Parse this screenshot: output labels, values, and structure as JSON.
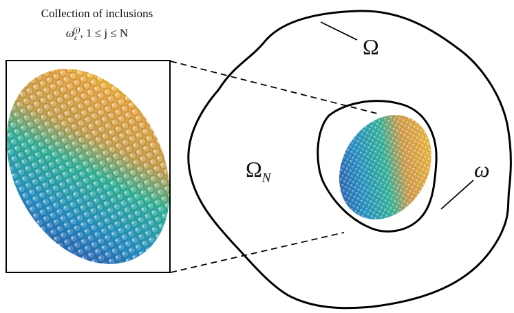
{
  "caption": {
    "line1": "Collection of inclusions",
    "line2_symbol": "ω",
    "line2_sub": "ε",
    "line2_sup": "(j)",
    "line2_rest": ", 1 ≤ j ≤ N"
  },
  "labels": {
    "domain": "Ω",
    "subdomain_base": "Ω",
    "subdomain_sub": "N",
    "region": "ω"
  },
  "colors": {
    "outline": "#000000",
    "gradient_stops": [
      "#2f3fa8",
      "#1f8fc0",
      "#2bb39a",
      "#b8b24a",
      "#e7a640",
      "#f1e020"
    ]
  }
}
